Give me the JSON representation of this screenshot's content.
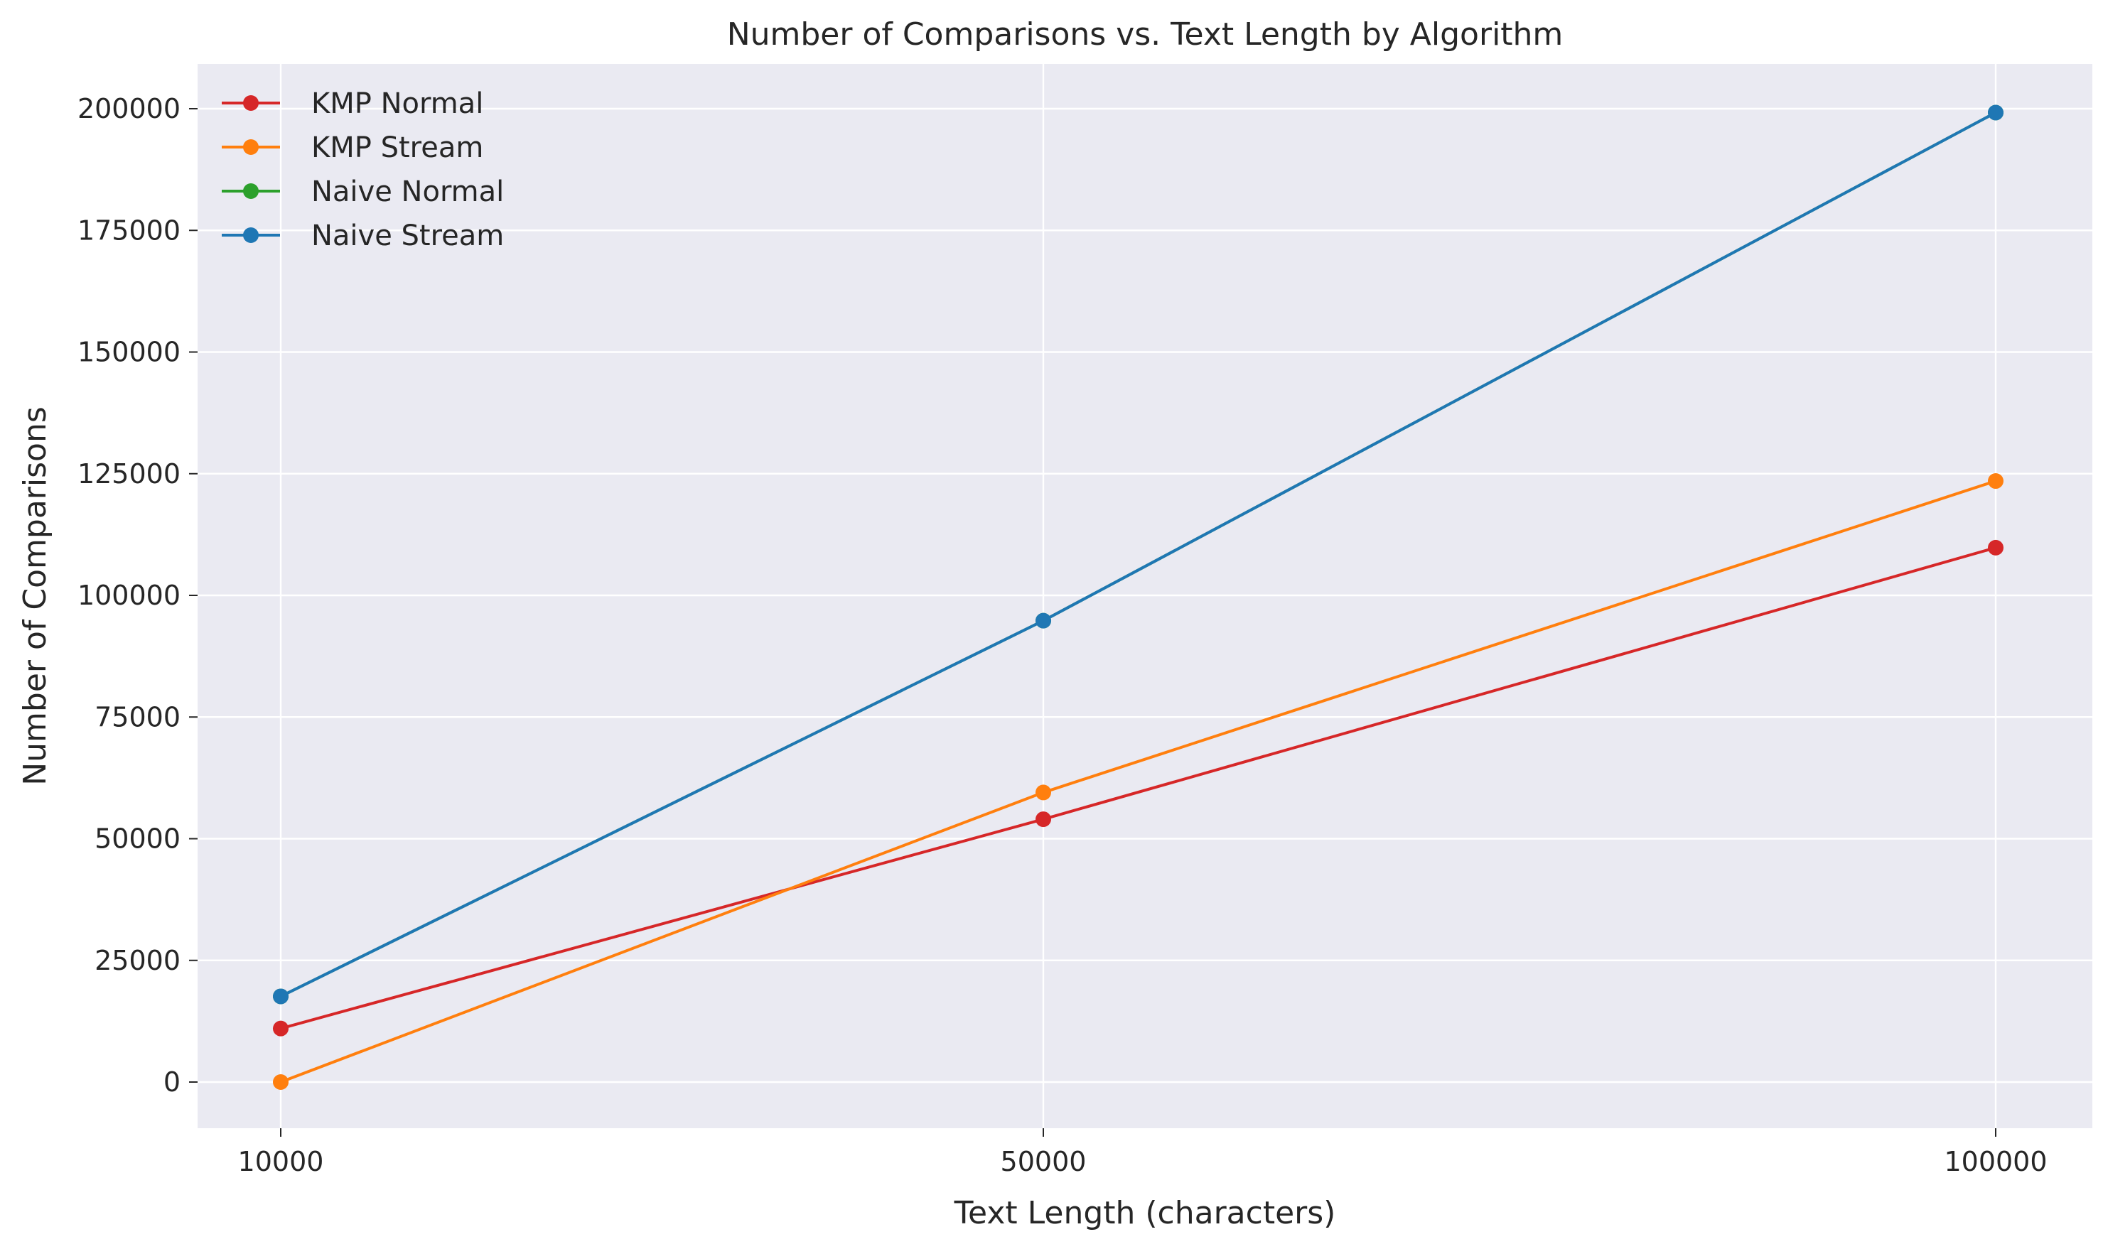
{
  "chart_data": {
    "type": "line",
    "title": "Number of Comparisons vs. Text Length by Algorithm",
    "xlabel": "Text Length (characters)",
    "ylabel": "Number of Comparisons",
    "x": [
      10000,
      50000,
      100000
    ],
    "x_tick_labels": [
      "10000",
      "50000",
      "100000"
    ],
    "x_scale": "categorical",
    "y_ticks": [
      0,
      25000,
      50000,
      75000,
      100000,
      125000,
      150000,
      175000,
      200000
    ],
    "y_tick_labels": [
      "0",
      "25000",
      "50000",
      "75000",
      "100000",
      "125000",
      "150000",
      "175000",
      "200000"
    ],
    "ylim": [
      -10000,
      208500
    ],
    "grid": true,
    "legend_position": "top-left",
    "background_color": "#eaeaf2",
    "series": [
      {
        "name": "KMP Normal",
        "color": "#d62728",
        "values": [
          11000,
          54000,
          109800
        ]
      },
      {
        "name": "KMP Stream",
        "color": "#ff7f0e",
        "values": [
          0,
          59500,
          123500
        ]
      },
      {
        "name": "Naive Normal",
        "color": "#2ca02c",
        "values": [
          17600,
          94800,
          199200
        ]
      },
      {
        "name": "Naive Stream",
        "color": "#1f77b4",
        "values": [
          17600,
          94800,
          199200
        ]
      }
    ]
  }
}
